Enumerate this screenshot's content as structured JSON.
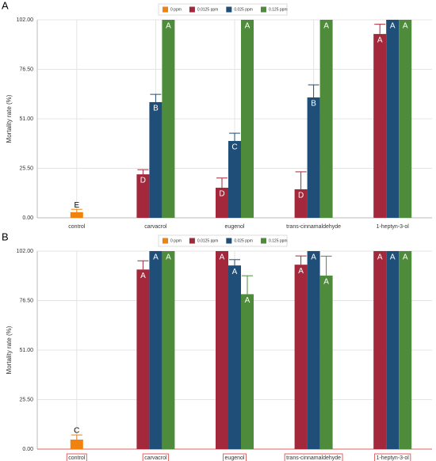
{
  "chart_data": [
    {
      "type": "bar",
      "panel": "A",
      "ylabel": "Mortality rate (%)",
      "categories": [
        "control",
        "carvacrol",
        "eugenol",
        "trans-cinnamaldehyde",
        "1-heptyn-3-ol"
      ],
      "series": [
        {
          "name": "0 ppm",
          "color": "#f0820f",
          "values": [
            2.9,
            null,
            null,
            null,
            null
          ],
          "errors": [
            1.5,
            null,
            null,
            null,
            null
          ],
          "letters": [
            "E",
            null,
            null,
            null,
            null
          ]
        },
        {
          "name": "0.0125 ppm",
          "color": "#a3283c",
          "values": [
            null,
            22.4,
            15.5,
            14.7,
            94.7
          ],
          "errors": [
            null,
            2.4,
            5,
            9,
            5
          ],
          "letters": [
            null,
            "D",
            "D",
            "D",
            "A"
          ]
        },
        {
          "name": "0.025 ppm",
          "color": "#1f4e79",
          "values": [
            null,
            59.6,
            39.6,
            62,
            102
          ],
          "errors": [
            null,
            4,
            4,
            6.5,
            0
          ],
          "letters": [
            null,
            "B",
            "C",
            "B",
            "A"
          ]
        },
        {
          "name": "0.125 ppm",
          "color": "#4e8b3a",
          "values": [
            null,
            102,
            102,
            102,
            102
          ],
          "errors": [
            null,
            0,
            0,
            0,
            0
          ],
          "letters": [
            null,
            "A",
            "A",
            "A",
            "A"
          ]
        }
      ],
      "ylim": [
        0,
        102
      ],
      "yticks": [
        {
          "value": 0,
          "label": "0.00"
        },
        {
          "value": 25.5,
          "label": "25.50"
        },
        {
          "value": 51,
          "label": "51.00"
        },
        {
          "value": 76.5,
          "label": "76.50"
        },
        {
          "value": 102,
          "label": "102.00"
        }
      ],
      "grid": true
    },
    {
      "type": "bar",
      "panel": "B",
      "ylabel": "Mortality rate (%)",
      "categories": [
        "control",
        "carvacrol",
        "eugenol",
        "trans-cinnamaldehyde",
        "1-heptyn-3-ol"
      ],
      "series": [
        {
          "name": "0 ppm",
          "color": "#f0820f",
          "values": [
            4.9,
            null,
            null,
            null,
            null
          ],
          "errors": [
            2.4,
            null,
            null,
            null,
            null
          ],
          "letters": [
            "C",
            null,
            null,
            null,
            null
          ]
        },
        {
          "name": "0.0125 ppm",
          "color": "#a3283c",
          "values": [
            null,
            92.5,
            102,
            95,
            102
          ],
          "errors": [
            null,
            4.5,
            0,
            4.5,
            0
          ],
          "letters": [
            null,
            "A",
            "A",
            "A",
            "A"
          ]
        },
        {
          "name": "0.025 ppm",
          "color": "#1f4e79",
          "values": [
            null,
            102,
            94.6,
            102,
            102
          ],
          "errors": [
            null,
            0,
            3,
            0,
            0
          ],
          "letters": [
            null,
            "A",
            "A",
            "A",
            "A"
          ]
        },
        {
          "name": "0.125 ppm",
          "color": "#4e8b3a",
          "values": [
            null,
            102,
            79.8,
            89.4,
            102
          ],
          "errors": [
            null,
            0,
            9.5,
            10,
            0
          ],
          "letters": [
            null,
            "A",
            "A",
            "A",
            "A"
          ]
        }
      ],
      "ylim": [
        0,
        102
      ],
      "yticks": [
        {
          "value": 0,
          "label": "0.00"
        },
        {
          "value": 25.5,
          "label": "25.50"
        },
        {
          "value": 51,
          "label": "51.00"
        },
        {
          "value": 76.5,
          "label": "76.50"
        },
        {
          "value": 102,
          "label": "102.00"
        }
      ],
      "grid": true,
      "category_box_color": "#e06060"
    }
  ]
}
